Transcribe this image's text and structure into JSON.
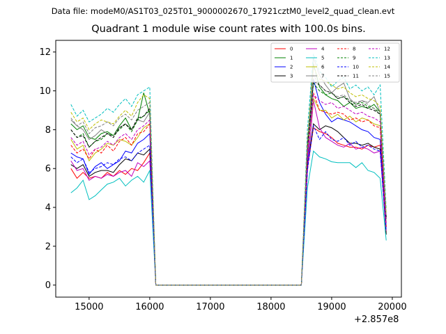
{
  "suptitle": "Data file: modeM0/AS1T03_025T01_9000002670_17921cztM0_level2_quad_clean.evt",
  "chart_data": {
    "type": "line",
    "title": "Quadrant 1 module wise count rates with 100.0s bins.",
    "xlabel": "",
    "ylabel": "",
    "x_offset_label": "+2.857e8",
    "xlim": [
      14450,
      20150
    ],
    "ylim": [
      -0.62,
      12.6
    ],
    "xticks": [
      15000,
      16000,
      17000,
      18000,
      19000,
      20000
    ],
    "yticks": [
      0,
      2,
      4,
      6,
      8,
      10,
      12
    ],
    "grid": false,
    "legend": {
      "placement": "top-right",
      "columns": 4
    },
    "x_left": [
      14700,
      14800,
      14900,
      15000,
      15100,
      15200,
      15300,
      15400,
      15500,
      15600,
      15700,
      15800,
      15900,
      16000
    ],
    "x_gap": [
      16100,
      16200,
      16300,
      16400,
      16500,
      16600,
      16700,
      16800,
      16900,
      17000,
      17100,
      17200,
      17300,
      17400,
      17500,
      17600,
      17700,
      17800,
      17900,
      18000,
      18100,
      18200,
      18300,
      18400,
      18500
    ],
    "x_right": [
      18600,
      18700,
      18800,
      18900,
      19000,
      19100,
      19200,
      19300,
      19400,
      19500,
      19600,
      19700,
      19800,
      19900
    ],
    "series": [
      {
        "name": "0",
        "color": "#ff0000",
        "dash": "solid",
        "left": [
          6.0,
          5.5,
          5.8,
          5.5,
          5.6,
          5.5,
          5.8,
          5.6,
          5.9,
          5.7,
          6.0,
          5.9,
          6.3,
          6.8
        ],
        "right": [
          6.0,
          8.1,
          7.9,
          7.8,
          7.6,
          7.3,
          7.2,
          7.1,
          7.1,
          7.0,
          7.2,
          7.1,
          7.2,
          2.7
        ]
      },
      {
        "name": "1",
        "color": "#008000",
        "dash": "solid",
        "left": [
          8.3,
          8.0,
          8.2,
          7.6,
          7.5,
          7.8,
          7.9,
          7.7,
          8.2,
          8.6,
          8.0,
          8.5,
          9.9,
          8.8
        ],
        "right": [
          7.1,
          11.4,
          10.2,
          9.8,
          9.6,
          9.5,
          9.2,
          9.4,
          9.1,
          9.2,
          9.1,
          9.3,
          8.9,
          3.5
        ]
      },
      {
        "name": "2",
        "color": "#0000ff",
        "dash": "solid",
        "left": [
          6.8,
          6.6,
          6.5,
          5.7,
          6.1,
          6.3,
          6.0,
          6.2,
          6.4,
          6.9,
          6.8,
          7.3,
          7.5,
          7.8
        ],
        "right": [
          6.2,
          10.6,
          9.4,
          8.8,
          8.4,
          8.6,
          8.5,
          8.4,
          8.2,
          8.0,
          7.9,
          7.6,
          7.5,
          3.0
        ]
      },
      {
        "name": "3",
        "color": "#000000",
        "dash": "solid",
        "left": [
          6.2,
          6.0,
          6.2,
          5.6,
          5.8,
          5.9,
          5.9,
          5.8,
          6.2,
          6.5,
          6.4,
          6.8,
          6.7,
          7.0
        ],
        "right": [
          6.1,
          8.3,
          8.0,
          8.2,
          8.1,
          7.9,
          7.6,
          7.3,
          7.3,
          7.2,
          7.3,
          7.1,
          7.0,
          2.6
        ]
      },
      {
        "name": "4",
        "color": "#bf00bf",
        "dash": "solid",
        "left": [
          6.4,
          5.9,
          6.0,
          5.4,
          5.6,
          5.5,
          5.7,
          5.6,
          5.8,
          5.9,
          5.6,
          6.3,
          6.1,
          6.4
        ],
        "right": [
          5.8,
          9.5,
          8.1,
          7.6,
          7.4,
          7.2,
          7.1,
          7.3,
          7.0,
          7.1,
          7.0,
          6.8,
          6.9,
          2.8
        ]
      },
      {
        "name": "5",
        "color": "#00bfbf",
        "dash": "solid",
        "left": [
          4.75,
          5.0,
          5.4,
          4.4,
          4.6,
          4.9,
          5.2,
          5.3,
          5.5,
          5.1,
          5.4,
          5.6,
          5.3,
          5.9
        ],
        "right": [
          5.0,
          6.9,
          6.6,
          6.5,
          6.35,
          6.3,
          6.3,
          6.3,
          6.05,
          6.3,
          5.9,
          5.8,
          5.5,
          2.3
        ]
      },
      {
        "name": "6",
        "color": "#bfbf00",
        "dash": "solid",
        "left": [
          7.5,
          7.0,
          7.2,
          6.4,
          6.8,
          7.0,
          7.3,
          7.2,
          7.5,
          7.4,
          7.2,
          7.6,
          8.1,
          8.3
        ],
        "right": [
          6.8,
          9.6,
          9.0,
          9.0,
          8.6,
          8.8,
          8.5,
          8.7,
          8.4,
          8.6,
          8.5,
          8.3,
          8.2,
          3.2
        ]
      },
      {
        "name": "7",
        "color": "#808080",
        "dash": "solid",
        "left": [
          8.5,
          8.2,
          8.0,
          7.5,
          7.7,
          8.0,
          7.8,
          7.7,
          8.1,
          8.3,
          8.0,
          8.5,
          8.4,
          8.9
        ],
        "right": [
          7.2,
          11.7,
          10.8,
          10.3,
          9.9,
          10.2,
          10.4,
          9.6,
          9.3,
          9.5,
          9.4,
          9.7,
          8.9,
          3.4
        ]
      },
      {
        "name": "8",
        "color": "#ff0000",
        "dash": "dashed",
        "left": [
          7.2,
          6.8,
          7.0,
          6.5,
          7.0,
          6.8,
          7.2,
          6.9,
          7.4,
          7.6,
          7.2,
          7.8,
          7.9,
          8.3
        ],
        "right": [
          6.6,
          9.9,
          9.0,
          8.9,
          8.8,
          8.9,
          8.8,
          8.5,
          8.6,
          8.4,
          8.5,
          8.2,
          8.1,
          3.0
        ]
      },
      {
        "name": "9",
        "color": "#008000",
        "dash": "dashed",
        "left": [
          8.0,
          7.6,
          7.8,
          7.1,
          7.4,
          7.5,
          7.8,
          7.7,
          8.0,
          8.3,
          7.9,
          8.5,
          8.7,
          9.0
        ],
        "right": [
          7.0,
          10.4,
          10.0,
          9.8,
          9.9,
          9.6,
          9.7,
          9.5,
          9.3,
          9.4,
          9.2,
          9.1,
          8.8,
          3.4
        ]
      },
      {
        "name": "10",
        "color": "#0000ff",
        "dash": "dashed",
        "left": [
          6.6,
          6.3,
          6.5,
          5.8,
          6.0,
          6.1,
          6.3,
          6.2,
          6.5,
          6.6,
          6.4,
          6.8,
          7.0,
          7.2
        ],
        "right": [
          5.9,
          8.2,
          7.5,
          7.9,
          7.5,
          7.4,
          7.6,
          7.2,
          7.4,
          7.1,
          7.2,
          7.0,
          6.9,
          2.8
        ]
      },
      {
        "name": "11",
        "color": "#000000",
        "dash": "dashed",
        "left": [
          8.0,
          7.6,
          7.7,
          7.1,
          7.4,
          7.6,
          7.8,
          7.6,
          8.1,
          8.3,
          8.0,
          8.6,
          8.7,
          9.1
        ],
        "right": [
          7.1,
          10.5,
          10.3,
          10.0,
          9.9,
          9.6,
          9.7,
          9.4,
          9.2,
          9.3,
          9.1,
          9.0,
          8.8,
          3.5
        ]
      },
      {
        "name": "12",
        "color": "#bf00bf",
        "dash": "dashed",
        "left": [
          7.6,
          7.2,
          7.4,
          6.7,
          7.0,
          7.1,
          7.4,
          7.2,
          7.6,
          7.8,
          7.5,
          8.0,
          8.2,
          8.5
        ],
        "right": [
          6.8,
          9.8,
          9.5,
          9.3,
          9.4,
          9.1,
          9.2,
          9.0,
          8.8,
          8.9,
          8.7,
          8.6,
          8.4,
          3.2
        ]
      },
      {
        "name": "13",
        "color": "#00bfbf",
        "dash": "dashed",
        "left": [
          9.3,
          8.7,
          9.0,
          8.4,
          8.6,
          8.8,
          9.1,
          8.9,
          9.3,
          9.6,
          9.2,
          9.8,
          10.0,
          10.2
        ],
        "right": [
          8.0,
          11.9,
          11.0,
          10.7,
          10.2,
          10.5,
          10.7,
          10.1,
          10.3,
          10.0,
          10.2,
          9.8,
          10.3,
          3.9
        ]
      },
      {
        "name": "14",
        "color": "#bfbf00",
        "dash": "dashed",
        "left": [
          8.9,
          8.4,
          8.6,
          8.0,
          8.3,
          8.5,
          8.4,
          8.3,
          8.7,
          9.0,
          8.7,
          9.4,
          9.8,
          9.6
        ],
        "right": [
          7.5,
          11.2,
          10.6,
          10.5,
          10.3,
          10.1,
          10.2,
          9.9,
          9.7,
          9.8,
          9.6,
          9.5,
          9.2,
          3.7
        ]
      },
      {
        "name": "15",
        "color": "#808080",
        "dash": "dashed",
        "left": [
          8.6,
          8.2,
          8.4,
          7.8,
          8.1,
          8.2,
          8.4,
          8.2,
          8.6,
          8.8,
          8.5,
          9.0,
          9.2,
          9.4
        ],
        "right": [
          7.4,
          10.8,
          10.3,
          10.0,
          9.9,
          9.7,
          9.8,
          9.5,
          9.4,
          9.5,
          9.3,
          9.1,
          8.9,
          3.6
        ]
      }
    ]
  }
}
